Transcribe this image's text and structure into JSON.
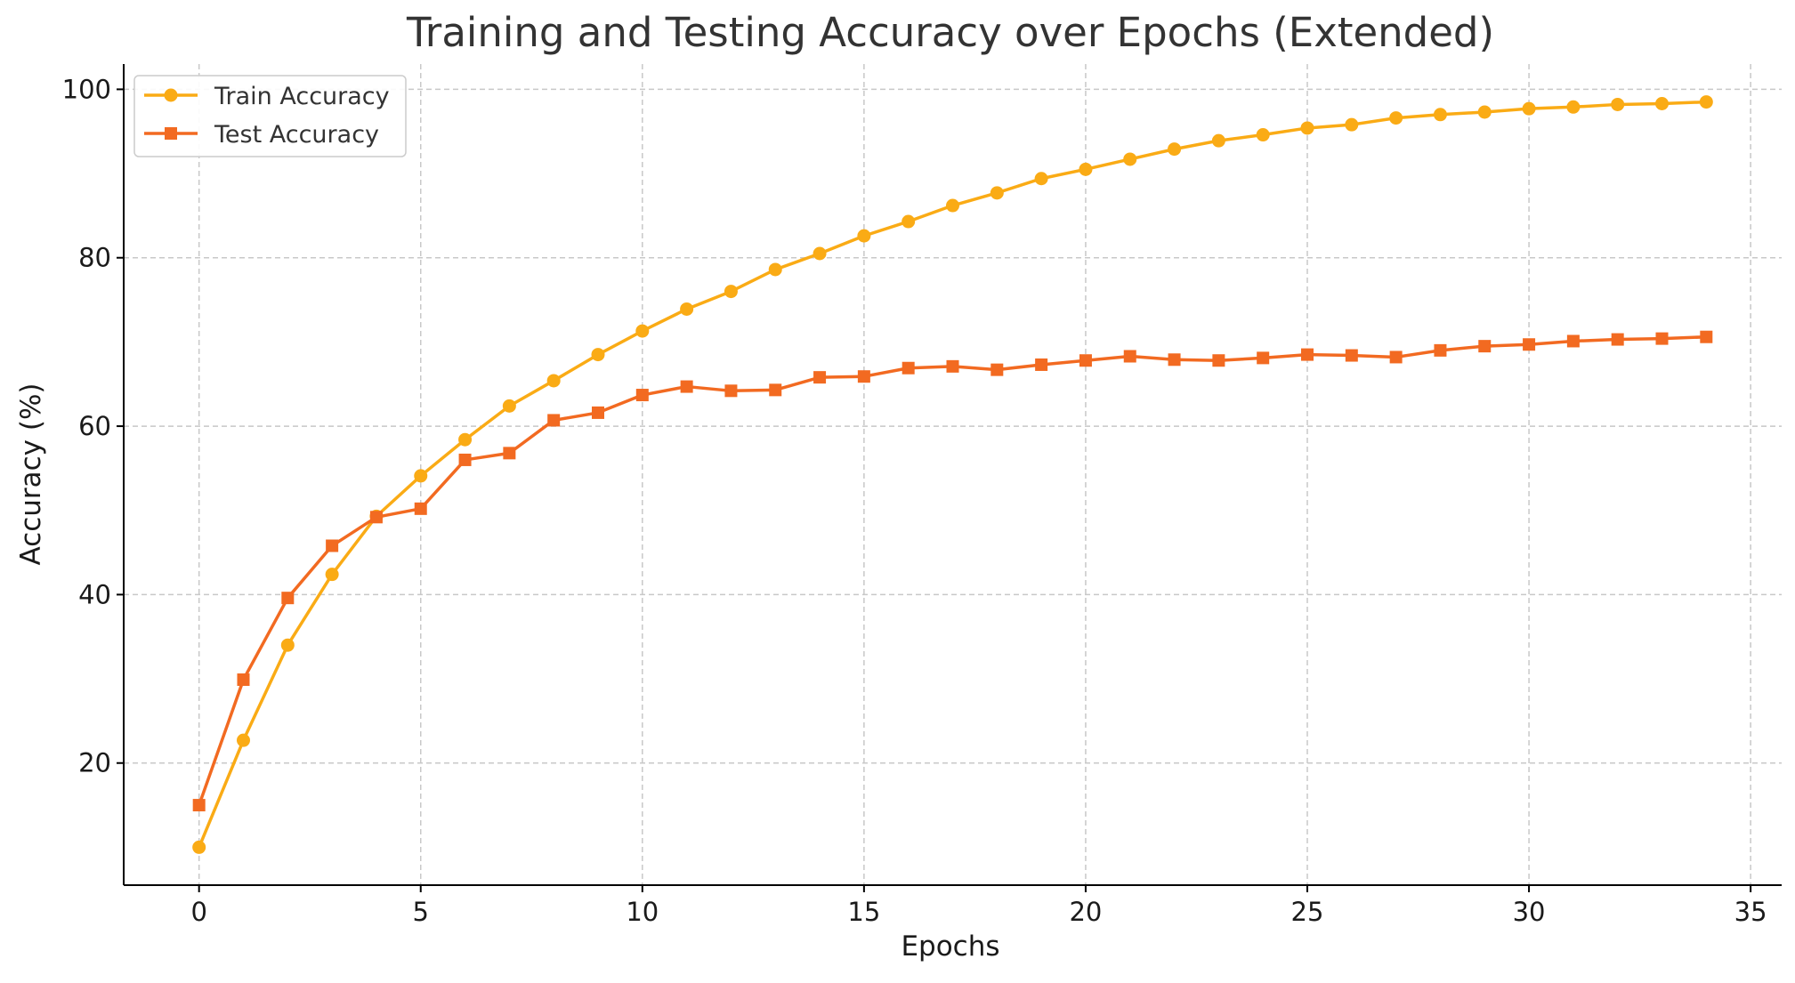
{
  "chart_data": {
    "type": "line",
    "title": "Training and Testing Accuracy over Epochs (Extended)",
    "xlabel": "Epochs",
    "ylabel": "Accuracy (%)",
    "xlim": [
      -1.7,
      35.7
    ],
    "ylim": [
      5.5,
      103
    ],
    "xticks": [
      0,
      5,
      10,
      15,
      20,
      25,
      30,
      35
    ],
    "yticks": [
      20,
      40,
      60,
      80,
      100
    ],
    "grid": true,
    "legend_position": "top-left",
    "x": [
      0,
      1,
      2,
      3,
      4,
      5,
      6,
      7,
      8,
      9,
      10,
      11,
      12,
      13,
      14,
      15,
      16,
      17,
      18,
      19,
      20,
      21,
      22,
      23,
      24,
      25,
      26,
      27,
      28,
      29,
      30,
      31,
      32,
      33,
      34
    ],
    "series": [
      {
        "name": "Train Accuracy",
        "color": "#FAAB15",
        "marker": "circle",
        "values": [
          10.0,
          22.7,
          34.0,
          42.4,
          49.3,
          54.1,
          58.4,
          62.4,
          65.4,
          68.5,
          71.3,
          73.9,
          76.0,
          78.6,
          80.5,
          82.6,
          84.3,
          86.2,
          87.7,
          89.4,
          90.5,
          91.7,
          92.9,
          93.9,
          94.6,
          95.4,
          95.8,
          96.6,
          97.0,
          97.3,
          97.7,
          97.9,
          98.2,
          98.3,
          98.5
        ]
      },
      {
        "name": "Test Accuracy",
        "color": "#F26A21",
        "marker": "square",
        "values": [
          15.0,
          29.9,
          39.6,
          45.8,
          49.2,
          50.2,
          56.0,
          56.8,
          60.7,
          61.6,
          63.7,
          64.7,
          64.2,
          64.3,
          65.8,
          65.9,
          66.9,
          67.1,
          66.7,
          67.3,
          67.8,
          68.3,
          67.9,
          67.8,
          68.1,
          68.5,
          68.4,
          68.2,
          69.0,
          69.5,
          69.7,
          70.1,
          70.3,
          70.4,
          70.6
        ]
      }
    ]
  }
}
